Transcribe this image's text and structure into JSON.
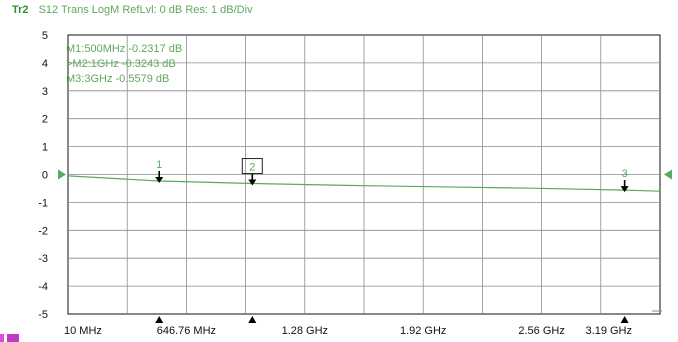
{
  "trace": {
    "name": "Tr2",
    "info": "S12 Trans LogM RefLvl: 0  dB Res: 1  dB/Div",
    "color": "#5ea85e"
  },
  "markers_readout": [
    "M1:500MHz  -0.2317  dB",
    ">M2:1GHz  -0.3243  dB",
    "M3:3GHz  -0.5579  dB"
  ],
  "chart_data": {
    "type": "line",
    "ylim": [
      -5,
      5
    ],
    "y_ticks": [
      "5",
      "4",
      "3",
      "2",
      "1",
      "0",
      "-1",
      "-2",
      "-3",
      "-4",
      "-5"
    ],
    "xlim_ghz": [
      0.01,
      3.19
    ],
    "x_tick_labels": [
      "10 MHz",
      "646.76 MHz",
      "1.28 GHz",
      "1.92 GHz",
      "2.56 GHz",
      "3.19 GHz"
    ],
    "grid": true,
    "series": [
      {
        "x": [
          0.01,
          0.5,
          1.0,
          1.5,
          2.0,
          2.5,
          3.0,
          3.19
        ],
        "y": [
          -0.05,
          -0.2317,
          -0.3243,
          -0.39,
          -0.44,
          -0.49,
          -0.5579,
          -0.6
        ],
        "color": "#5ea85e"
      }
    ],
    "markers": [
      {
        "label": "1",
        "x": 0.5,
        "y": -0.2317,
        "active": false
      },
      {
        "label": "2",
        "x": 1.0,
        "y": -0.3243,
        "active": true
      },
      {
        "label": "3",
        "x": 3.0,
        "y": -0.5579,
        "active": false
      }
    ]
  }
}
